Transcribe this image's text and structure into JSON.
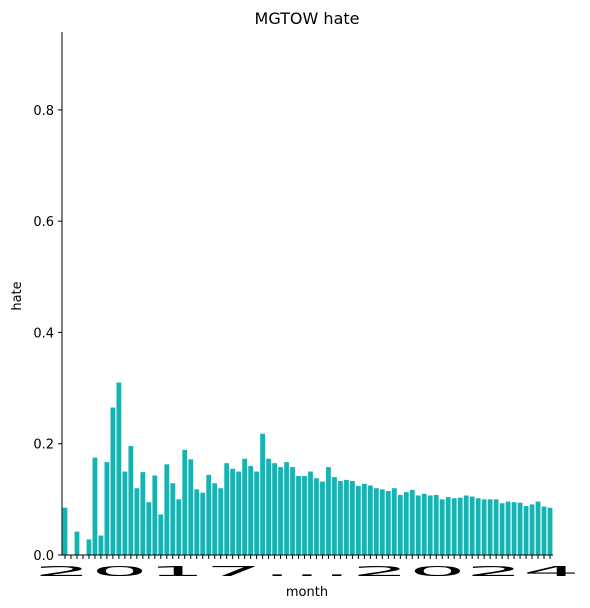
{
  "chart_data": {
    "type": "bar",
    "title": "MGTOW hate",
    "xlabel": "month",
    "ylabel": "hate",
    "ylim": [
      0,
      0.94
    ],
    "yticks": [
      0.0,
      0.2,
      0.4,
      0.6,
      0.8
    ],
    "ytick_labels": [
      "0.0",
      "0.2",
      "0.4",
      "0.6",
      "0.8"
    ],
    "bar_color": "#17b3b3",
    "x_tick_text": "2017…2024",
    "x_first_tick": "2017",
    "x_last_tick": "2024",
    "values": [
      0.085,
      0.0,
      0.042,
      0.0,
      0.028,
      0.175,
      0.035,
      0.167,
      0.265,
      0.31,
      0.15,
      0.196,
      0.12,
      0.149,
      0.095,
      0.143,
      0.073,
      0.163,
      0.129,
      0.1,
      0.189,
      0.172,
      0.118,
      0.112,
      0.144,
      0.129,
      0.12,
      0.165,
      0.155,
      0.15,
      0.173,
      0.16,
      0.15,
      0.218,
      0.173,
      0.165,
      0.158,
      0.167,
      0.158,
      0.142,
      0.142,
      0.15,
      0.138,
      0.132,
      0.158,
      0.14,
      0.133,
      0.135,
      0.133,
      0.124,
      0.128,
      0.125,
      0.12,
      0.118,
      0.115,
      0.12,
      0.108,
      0.113,
      0.117,
      0.107,
      0.11,
      0.107,
      0.108,
      0.1,
      0.104,
      0.102,
      0.103,
      0.107,
      0.105,
      0.102,
      0.1,
      0.1,
      0.1,
      0.093,
      0.096,
      0.095,
      0.094,
      0.088,
      0.091,
      0.096,
      0.087,
      0.085
    ]
  }
}
